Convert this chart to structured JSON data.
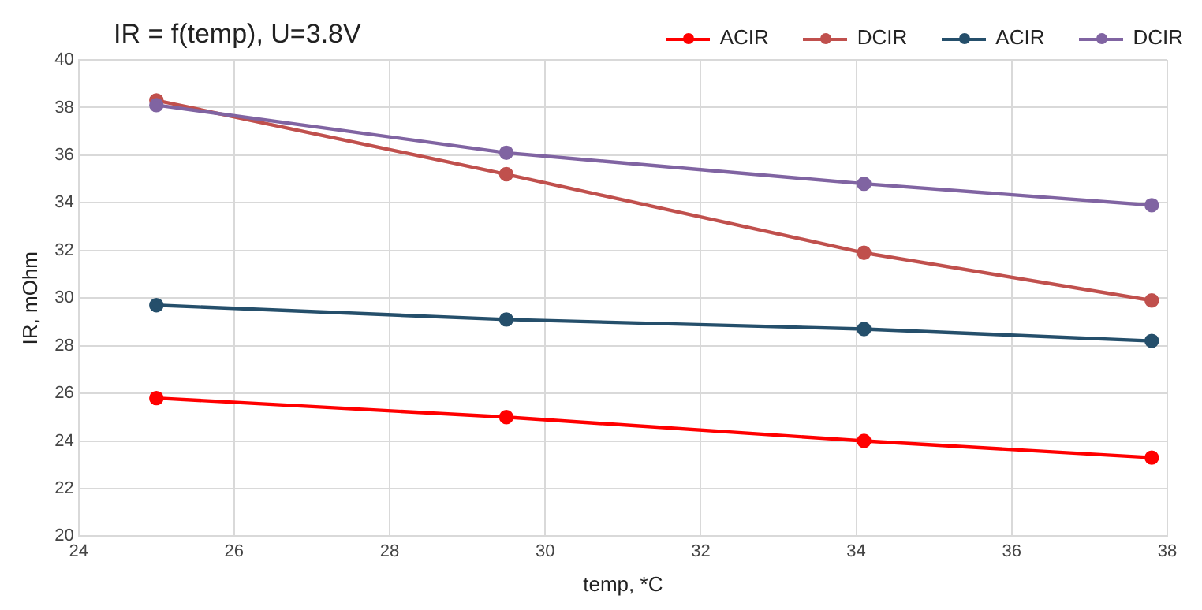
{
  "chart_data": {
    "type": "line",
    "title": "IR = f(temp),  U=3.8V",
    "xlabel": "temp, *C",
    "ylabel": "IR, mOhm",
    "x": [
      25,
      29.5,
      34.1,
      37.8
    ],
    "series": [
      {
        "name": "ACIR",
        "color": "#ff0000",
        "values": [
          25.8,
          25.0,
          24.0,
          23.3
        ]
      },
      {
        "name": "DCIR",
        "color": "#c0504d",
        "values": [
          38.3,
          35.2,
          31.9,
          29.9
        ]
      },
      {
        "name": "ACIR",
        "color": "#254f6b",
        "values": [
          29.7,
          29.1,
          28.7,
          28.2
        ]
      },
      {
        "name": "DCIR",
        "color": "#8064a2",
        "values": [
          38.1,
          36.1,
          34.8,
          33.9
        ]
      }
    ],
    "xlim": [
      24,
      38
    ],
    "xticks": [
      24,
      26,
      28,
      30,
      32,
      34,
      36,
      38
    ],
    "ylim": [
      20,
      40
    ],
    "yticks": [
      20,
      22,
      24,
      26,
      28,
      30,
      32,
      34,
      36,
      38,
      40
    ],
    "grid": true,
    "legend": "top right",
    "marker": "circle",
    "line_style": "solid"
  }
}
